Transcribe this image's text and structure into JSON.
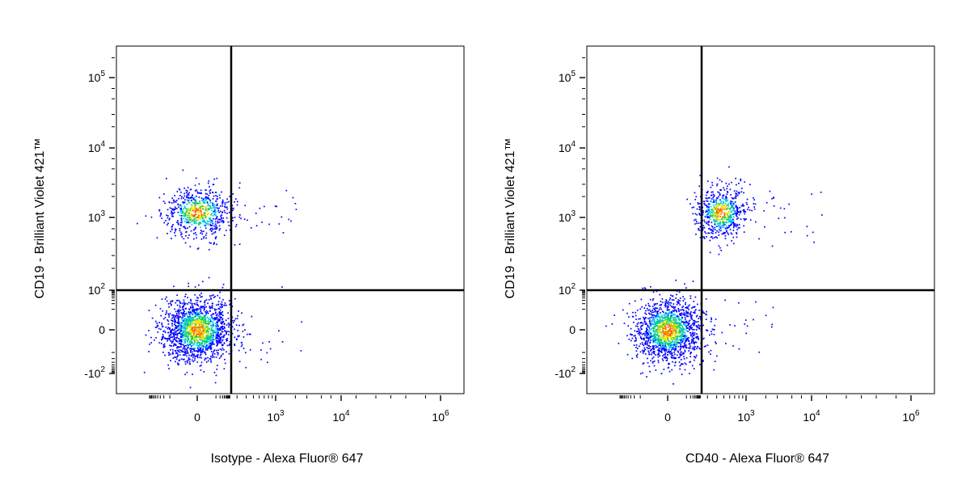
{
  "chart_data": [
    {
      "type": "scatter",
      "plot_style": "flow cytometry pseudocolor dot plot",
      "xlabel": "Isotype - Alexa Fluor® 647",
      "ylabel": "CD19 - Brilliant Violet 421™",
      "x_scale": "biexponential (logicle)",
      "y_scale": "biexponential (logicle)",
      "x_ticks": [
        {
          "base": "0",
          "exp": ""
        },
        {
          "base": "10",
          "exp": "3"
        },
        {
          "base": "10",
          "exp": "4"
        },
        {
          "base": "10",
          "exp": "6"
        }
      ],
      "y_ticks": [
        {
          "base": "-10",
          "exp": "2"
        },
        {
          "base": "0",
          "exp": ""
        },
        {
          "base": "10",
          "exp": "2"
        },
        {
          "base": "10",
          "exp": "3"
        },
        {
          "base": "10",
          "exp": "4"
        },
        {
          "base": "10",
          "exp": "5"
        }
      ],
      "gate": {
        "x": 250,
        "y": 100
      },
      "populations": [
        {
          "x_center": 0,
          "y_center": 0,
          "x_spread": 150,
          "y_spread": 60,
          "events": 1600
        },
        {
          "x_center": 0,
          "y_center": 1200,
          "x_spread": 150,
          "y_spread": 0.35,
          "events": 700
        }
      ],
      "colors": [
        "#0000ff",
        "#00c8ff",
        "#00d060",
        "#f0e000",
        "#ff6000"
      ]
    },
    {
      "type": "scatter",
      "plot_style": "flow cytometry pseudocolor dot plot",
      "xlabel": "CD40 - Alexa Fluor® 647",
      "ylabel": "CD19 - Brilliant Violet 421™",
      "x_scale": "biexponential (logicle)",
      "y_scale": "biexponential (logicle)",
      "x_ticks": [
        {
          "base": "0",
          "exp": ""
        },
        {
          "base": "10",
          "exp": "3"
        },
        {
          "base": "10",
          "exp": "4"
        },
        {
          "base": "10",
          "exp": "6"
        }
      ],
      "y_ticks": [
        {
          "base": "-10",
          "exp": "2"
        },
        {
          "base": "0",
          "exp": ""
        },
        {
          "base": "10",
          "exp": "2"
        },
        {
          "base": "10",
          "exp": "3"
        },
        {
          "base": "10",
          "exp": "4"
        },
        {
          "base": "10",
          "exp": "5"
        }
      ],
      "gate": {
        "x": 250,
        "y": 100
      },
      "populations": [
        {
          "x_center": 0,
          "y_center": 0,
          "x_spread": 150,
          "y_spread": 60,
          "events": 1500
        },
        {
          "x_center": 450,
          "y_center": 1200,
          "x_spread": 0.3,
          "y_spread": 0.3,
          "events": 650
        }
      ],
      "colors": [
        "#0000ff",
        "#00c8ff",
        "#00d060",
        "#f0e000",
        "#ff6000"
      ]
    }
  ]
}
